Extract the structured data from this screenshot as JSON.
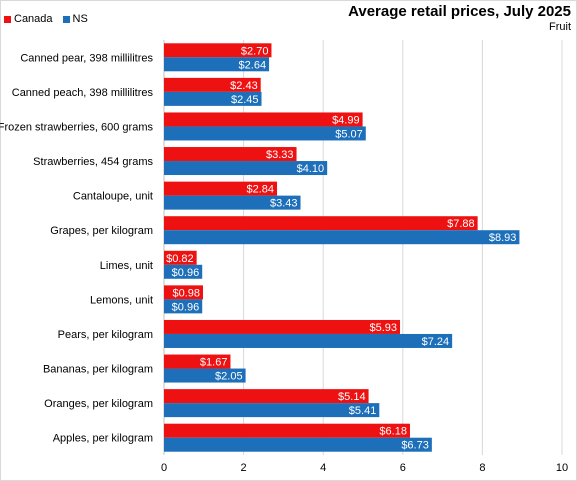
{
  "chart_data": {
    "type": "bar",
    "orientation": "horizontal",
    "title": "Average retail prices, July 2025",
    "subtitle": "Fruit",
    "categories": [
      "Canned pear, 398 millilitres",
      "Canned peach, 398 millilitres",
      "Frozen strawberries, 600 grams",
      "Strawberries, 454 grams",
      "Cantaloupe, unit",
      "Grapes, per kilogram",
      "Limes, unit",
      "Lemons, unit",
      "Pears, per kilogram",
      "Bananas, per kilogram",
      "Oranges, per kilogram",
      "Apples, per kilogram"
    ],
    "series": [
      {
        "name": "Canada",
        "color": "#ee1111",
        "values": [
          2.7,
          2.43,
          4.99,
          3.33,
          2.84,
          7.88,
          0.82,
          0.98,
          5.93,
          1.67,
          5.14,
          6.18
        ],
        "labels": [
          "$2.70",
          "$2.43",
          "$4.99",
          "$3.33",
          "$2.84",
          "$7.88",
          "$0.82",
          "$0.98",
          "$5.93",
          "$1.67",
          "$5.14",
          "$6.18"
        ]
      },
      {
        "name": "NS",
        "color": "#1c6fb8",
        "values": [
          2.64,
          2.45,
          5.07,
          4.1,
          3.43,
          8.93,
          0.96,
          0.96,
          7.24,
          2.05,
          5.41,
          6.73
        ],
        "labels": [
          "$2.64",
          "$2.45",
          "$5.07",
          "$4.10",
          "$3.43",
          "$8.93",
          "$0.96",
          "$0.96",
          "$7.24",
          "$2.05",
          "$5.41",
          "$6.73"
        ]
      }
    ],
    "xlim": [
      0,
      10
    ],
    "xticks": [
      "0",
      "2",
      "4",
      "6",
      "8",
      "10"
    ],
    "grid": "vertical",
    "legend_position": "top-left"
  }
}
